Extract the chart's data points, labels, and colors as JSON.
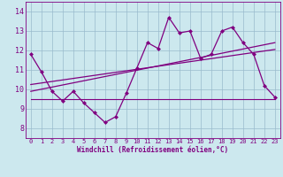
{
  "title": "",
  "xlabel": "Windchill (Refroidissement éolien,°C)",
  "background_color": "#cce8ee",
  "line_color": "#800080",
  "grid_color": "#99bbcc",
  "xlim": [
    -0.5,
    23.5
  ],
  "ylim": [
    7.5,
    14.5
  ],
  "yticks": [
    8,
    9,
    10,
    11,
    12,
    13,
    14
  ],
  "xticks": [
    0,
    1,
    2,
    3,
    4,
    5,
    6,
    7,
    8,
    9,
    10,
    11,
    12,
    13,
    14,
    15,
    16,
    17,
    18,
    19,
    20,
    21,
    22,
    23
  ],
  "series1": [
    11.8,
    10.9,
    9.9,
    9.4,
    9.9,
    9.3,
    8.8,
    8.3,
    8.6,
    9.8,
    11.1,
    12.4,
    12.1,
    13.7,
    12.9,
    13.0,
    11.6,
    11.8,
    13.0,
    13.2,
    12.4,
    11.8,
    10.2,
    9.6
  ],
  "series2": [
    9.5,
    9.5,
    9.5,
    9.5,
    9.5,
    9.5,
    9.5,
    9.5,
    9.5,
    9.5,
    9.5,
    9.5,
    9.5,
    9.5,
    9.5,
    9.5,
    9.5,
    9.5,
    9.5,
    9.5,
    9.5,
    9.5,
    9.5,
    9.5
  ],
  "series3_x": [
    0,
    23
  ],
  "series3_y": [
    9.9,
    12.4
  ],
  "series4_x": [
    0,
    23
  ],
  "series4_y": [
    10.25,
    12.05
  ]
}
